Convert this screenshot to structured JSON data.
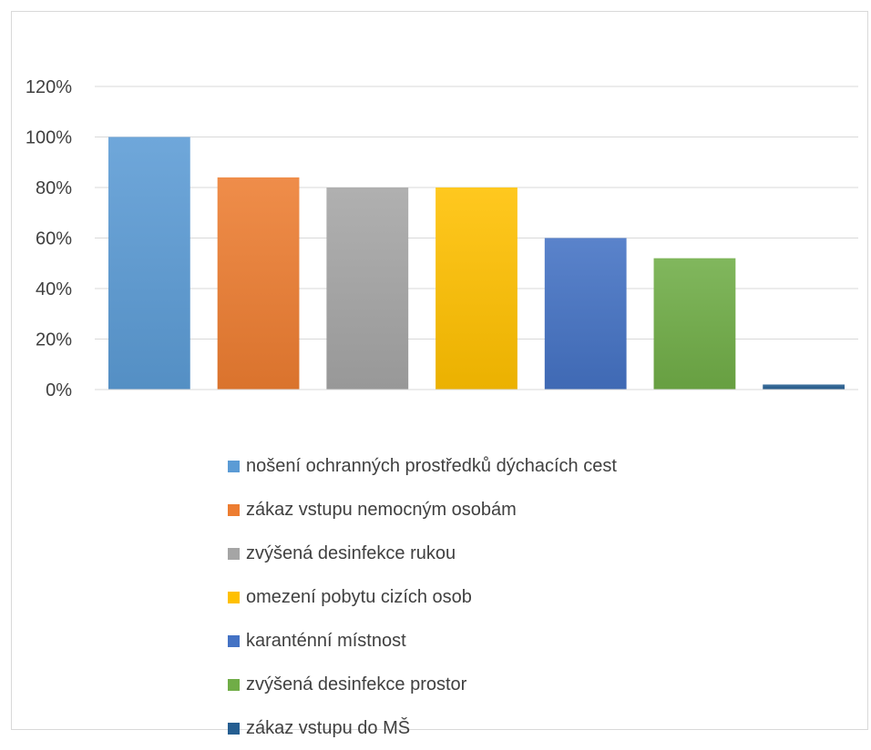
{
  "chart_data": {
    "type": "bar",
    "title": "",
    "xlabel": "",
    "ylabel": "",
    "ylim": [
      0,
      1.2
    ],
    "yticks": [
      "0%",
      "20%",
      "40%",
      "60%",
      "80%",
      "100%",
      "120%"
    ],
    "y_format": "percent",
    "grid": true,
    "legend_position": "bottom",
    "categories": [
      "nošení ochranných prostředků dýchacích cest",
      "zákaz vstupu nemocným osobám",
      "zvýšená desinfekce rukou",
      "omezení pobytu cizích osob",
      "karanténní místnost",
      "zvýšená desinfekce prostor",
      "zákaz vstupu do MŠ"
    ],
    "values": [
      1.0,
      0.84,
      0.8,
      0.8,
      0.6,
      0.52,
      0.02
    ],
    "colors": [
      "#5b9bd5",
      "#ed7d31",
      "#a5a5a5",
      "#ffc000",
      "#4472c4",
      "#70ad47",
      "#255e91"
    ]
  }
}
